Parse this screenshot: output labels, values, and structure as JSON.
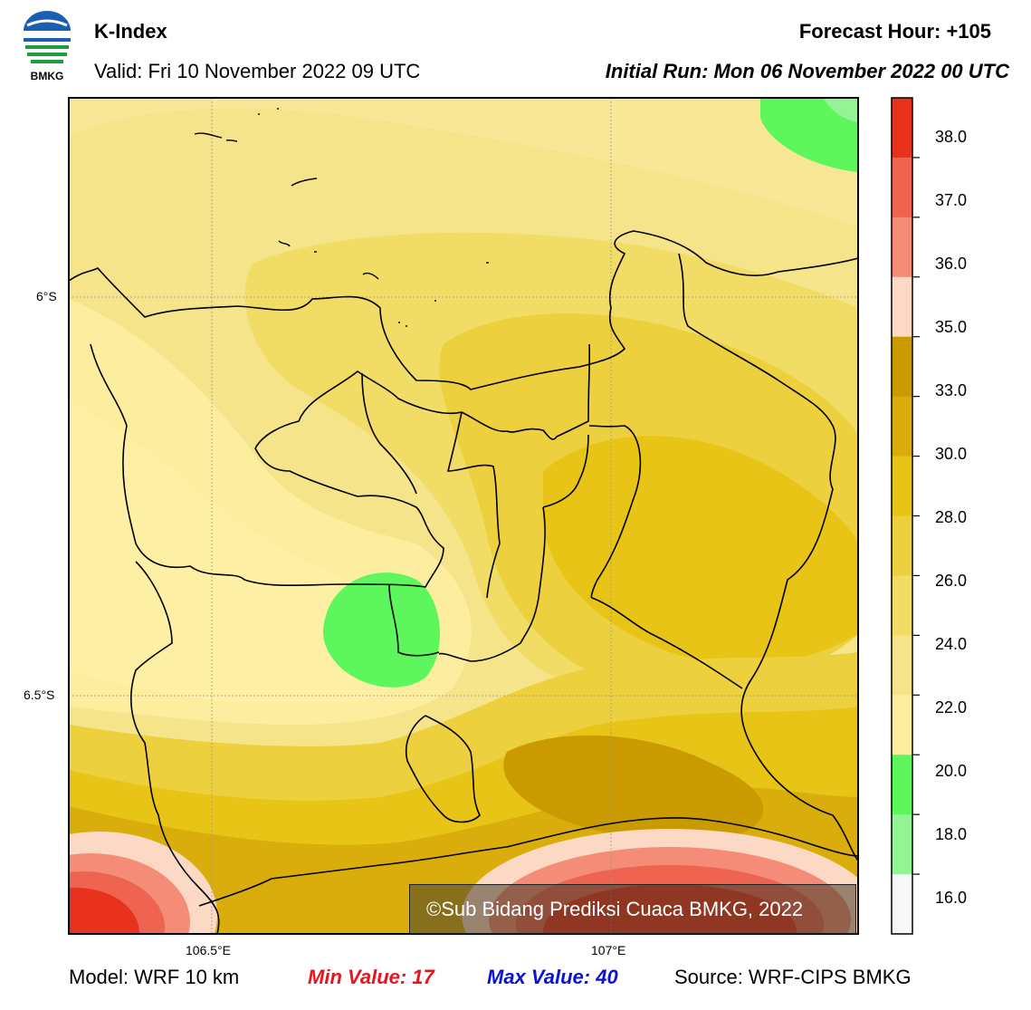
{
  "header": {
    "logo_text": "BMKG",
    "title": "K-Index",
    "valid": "Valid: Fri 10 November 2022 09 UTC",
    "forecast_hour": "Forecast Hour: +105",
    "initial_run": "Initial Run: Mon 06 November 2022 00 UTC"
  },
  "map": {
    "lat_labels": [
      "6°S",
      "6.5°S"
    ],
    "lon_labels": [
      "106.5°E",
      "107°E"
    ],
    "copyright": "©Sub Bidang Prediksi Cuaca BMKG, 2022"
  },
  "colorbar": {
    "labels": [
      "38.0",
      "37.0",
      "36.0",
      "35.0",
      "33.0",
      "30.0",
      "28.0",
      "26.0",
      "24.0",
      "22.0",
      "20.0",
      "18.0",
      "16.0"
    ],
    "colors": [
      "#e8321e",
      "#ee6450",
      "#f48c78",
      "#fbd9c4",
      "#c99b00",
      "#d8ad0c",
      "#e8c416",
      "#ecd03e",
      "#f1dc66",
      "#f5e48a",
      "#fcee9e",
      "#5df65d",
      "#94f394",
      "#f8f8f8"
    ]
  },
  "footer": {
    "model": "Model: WRF 10 km",
    "min_value": "Min Value: 17",
    "max_value": "Max Value: 40",
    "source": "Source: WRF-CIPS BMKG"
  },
  "colors": {
    "min_text": "#e8141e",
    "max_text": "#0a14d2"
  }
}
